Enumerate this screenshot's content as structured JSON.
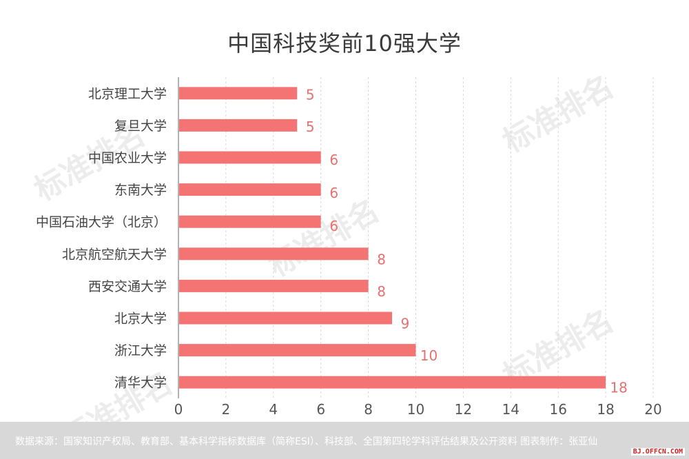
{
  "chart_data": {
    "type": "bar",
    "orientation": "horizontal",
    "title": "中国科技奖前10强大学",
    "categories": [
      "北京理工大学",
      "复旦大学",
      "中国农业大学",
      "东南大学",
      "中国石油大学（北京）",
      "北京航空航天大学",
      "西安交通大学",
      "北京大学",
      "浙江大学",
      "清华大学"
    ],
    "values": [
      5,
      5,
      6,
      6,
      6,
      8,
      8,
      9,
      10,
      18
    ],
    "xlim": [
      0,
      20
    ],
    "xticks": [
      "0",
      "2",
      "4",
      "6",
      "8",
      "10",
      "12",
      "14",
      "16",
      "18",
      "20"
    ],
    "grid": "vertical-dashed",
    "bar_color": "#f47474",
    "label_color": "#e87070"
  },
  "footer": {
    "text": "数据来源：国家知识产权局、教育部、基本科学指标数据库（简称ESI）、科技部、全国第四轮学科评估结果及公开资料  图表制作：张亚仙"
  },
  "site_mark": "BJ.OFFCN.COM",
  "watermark": "标准排名"
}
